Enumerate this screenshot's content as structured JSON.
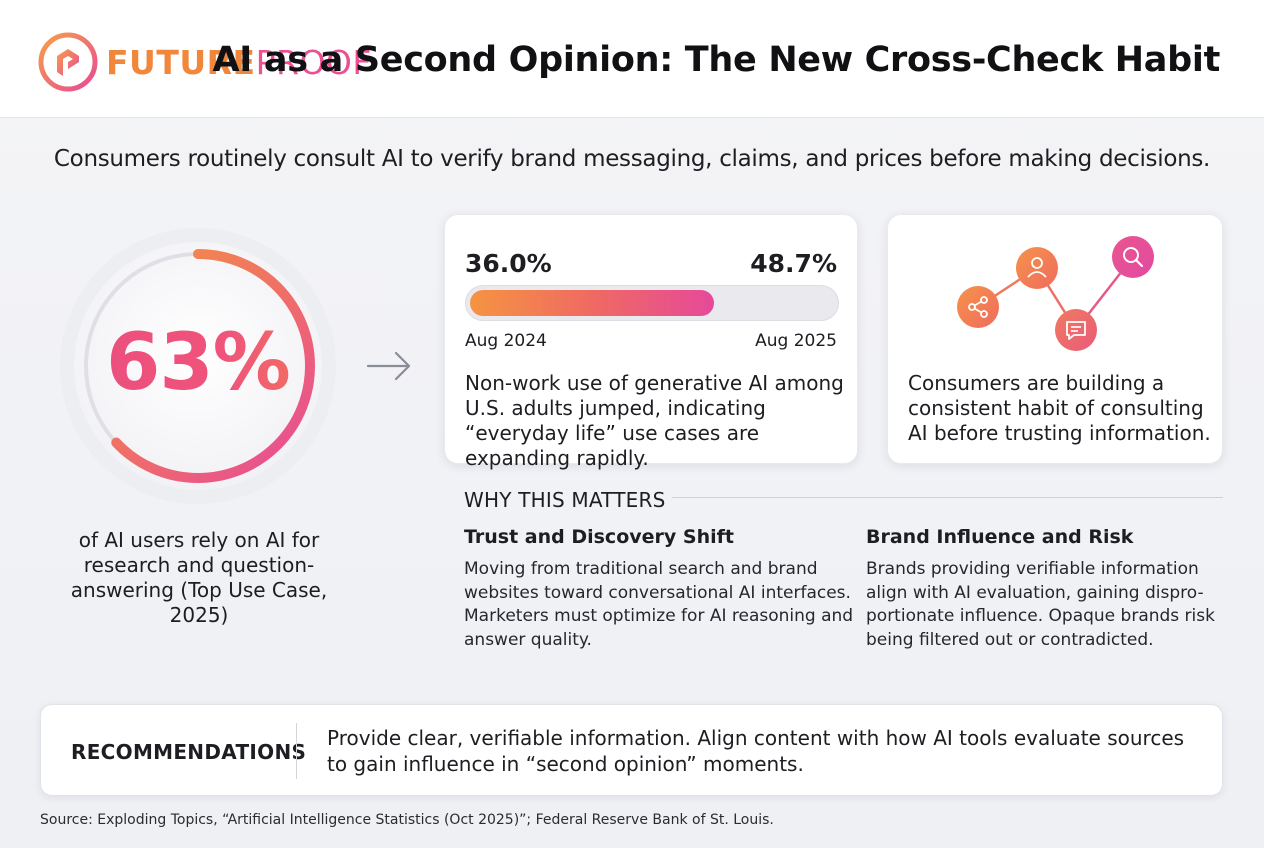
{
  "brand": {
    "name_part1": "FUTURE",
    "name_part2": "PROOF",
    "logo_icon": "futureproof-logo-icon"
  },
  "header": {
    "title": "AI as a Second Opinion: The New Cross-Check Habit"
  },
  "subtitle": "Consumers routinely consult AI to verify brand messaging, claims, and prices before making decisions.",
  "key_stat": {
    "value": "63%",
    "fraction": 0.63,
    "caption": "of AI users rely on AI for research and question-answering (Top Use Case, 2025)"
  },
  "usage_card": {
    "from_value": "36.0%",
    "to_value": "48.7%",
    "from_label": "Aug 2024",
    "to_label": "Aug 2025",
    "bar_fraction": 0.67,
    "description": "Non-work use of generative AI among U.S. adults jumped, indicating “everyday life” use cases are expanding rapidly."
  },
  "habit_card": {
    "icons": [
      "share-icon",
      "person-icon",
      "chat-icon",
      "search-icon"
    ],
    "description": "Consumers are building a consistent habit of consulting AI before trusting information."
  },
  "why": {
    "heading": "WHY THIS MATTERS",
    "left": {
      "title": "Trust and Discovery Shift",
      "body": "Moving from traditional search and brand websites toward conversational AI interfaces. Marketers must optimize for AI reasoning and answer quality."
    },
    "right": {
      "title": "Brand Influence and Risk",
      "body": "Brands providing verifiable information align with AI evaluation, gaining dispro-portionate influence. Opaque brands risk being filtered out or contradicted."
    }
  },
  "recommendations": {
    "label": "RECOMMENDATIONS",
    "text": "Provide clear, verifiable information. Align content with how AI tools evaluate sources to gain influence in “second opinion” moments."
  },
  "source": "Source: Exploding Topics, “Artificial Intelligence Statistics (Oct 2025)”; Federal Reserve Bank of St. Louis.",
  "colors": {
    "orange": "#f0873a",
    "pink": "#ec4f92",
    "magenta": "#e6499a"
  }
}
